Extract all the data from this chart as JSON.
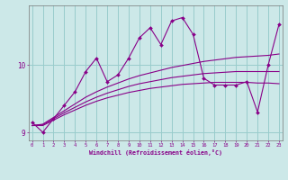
{
  "xlabel": "Windchill (Refroidissement éolien,°C)",
  "bg_color": "#cce8e8",
  "line_color": "#880088",
  "grid_color": "#99cccc",
  "axis_color": "#880088",
  "x_data": [
    0,
    1,
    2,
    3,
    4,
    5,
    6,
    7,
    8,
    9,
    10,
    11,
    12,
    13,
    14,
    15,
    16,
    17,
    18,
    19,
    20,
    21,
    22,
    23
  ],
  "line1_y": [
    9.15,
    9.0,
    9.2,
    9.4,
    9.6,
    9.9,
    10.1,
    9.75,
    9.85,
    10.1,
    10.4,
    10.55,
    10.3,
    10.65,
    10.7,
    10.45,
    9.8,
    9.7,
    9.7,
    9.7,
    9.75,
    9.3,
    10.0,
    10.6
  ],
  "line2_y": [
    9.1,
    9.12,
    9.22,
    9.32,
    9.42,
    9.52,
    9.6,
    9.67,
    9.73,
    9.79,
    9.84,
    9.88,
    9.92,
    9.96,
    9.99,
    10.02,
    10.05,
    10.07,
    10.09,
    10.11,
    10.12,
    10.13,
    10.14,
    10.16
  ],
  "line3_y": [
    9.1,
    9.11,
    9.2,
    9.29,
    9.37,
    9.45,
    9.52,
    9.58,
    9.63,
    9.68,
    9.72,
    9.75,
    9.78,
    9.81,
    9.83,
    9.85,
    9.87,
    9.88,
    9.89,
    9.9,
    9.9,
    9.9,
    9.9,
    9.9
  ],
  "line4_y": [
    9.1,
    9.1,
    9.18,
    9.26,
    9.33,
    9.4,
    9.46,
    9.51,
    9.55,
    9.59,
    9.62,
    9.65,
    9.67,
    9.69,
    9.71,
    9.72,
    9.73,
    9.74,
    9.74,
    9.74,
    9.74,
    9.73,
    9.73,
    9.72
  ],
  "ylim": [
    8.88,
    10.88
  ],
  "yticks": [
    9,
    10
  ],
  "xticks": [
    0,
    1,
    2,
    3,
    4,
    5,
    6,
    7,
    8,
    9,
    10,
    11,
    12,
    13,
    14,
    15,
    16,
    17,
    18,
    19,
    20,
    21,
    22,
    23
  ]
}
